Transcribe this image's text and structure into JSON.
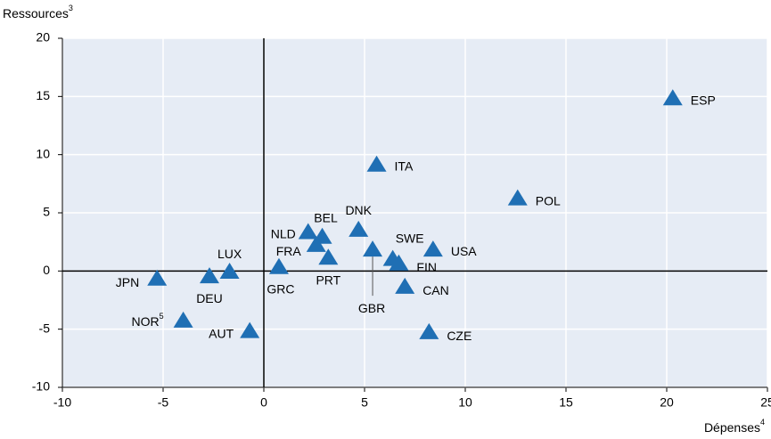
{
  "chart_data": {
    "type": "scatter",
    "y_label": "Ressources",
    "y_label_note": "3",
    "x_label": "Dépenses",
    "x_label_note": "4",
    "labels": [
      "ESP",
      "ITA",
      "POL",
      "DNK",
      "NLD",
      "BEL",
      "FRA",
      "PRT",
      "GBR",
      "SWE",
      "FIN",
      "USA",
      "CAN",
      "CZE",
      "GRC",
      "LUX",
      "DEU",
      "JPN",
      "NOR",
      "AUT"
    ],
    "label_notes": [
      null,
      null,
      null,
      null,
      null,
      null,
      null,
      null,
      null,
      null,
      null,
      null,
      null,
      null,
      null,
      null,
      null,
      null,
      "5",
      null
    ],
    "x": [
      20.3,
      5.6,
      12.6,
      4.7,
      2.2,
      2.9,
      2.6,
      3.2,
      5.4,
      6.4,
      6.7,
      8.4,
      7.0,
      8.2,
      0.75,
      -1.7,
      -2.7,
      -5.3,
      -4.0,
      -0.7
    ],
    "values": [
      14.7,
      9.0,
      6.1,
      3.4,
      3.2,
      2.8,
      2.1,
      1.0,
      1.7,
      0.9,
      0.5,
      1.7,
      -1.5,
      -5.4,
      0.2,
      -0.2,
      -0.6,
      -0.8,
      -4.4,
      -5.3
    ],
    "color": "#1f6fb4",
    "xlim": [
      -10,
      25
    ],
    "xticks": [
      -10,
      -5,
      0,
      5,
      10,
      15,
      20,
      25
    ],
    "ylim": [
      -10,
      20
    ],
    "yticks": [
      -10,
      -5,
      0,
      5,
      10,
      15,
      20
    ],
    "grid": true
  }
}
